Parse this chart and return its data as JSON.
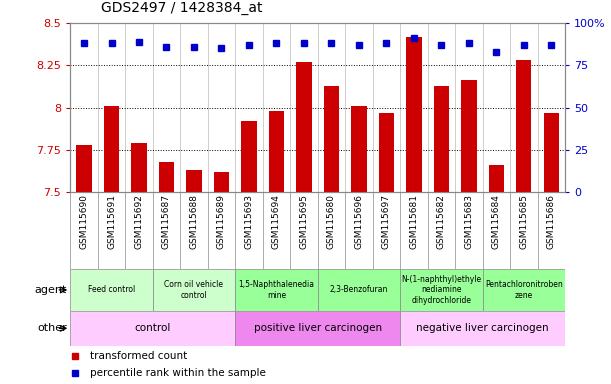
{
  "title": "GDS2497 / 1428384_at",
  "samples": [
    "GSM115690",
    "GSM115691",
    "GSM115692",
    "GSM115687",
    "GSM115688",
    "GSM115689",
    "GSM115693",
    "GSM115694",
    "GSM115695",
    "GSM115680",
    "GSM115696",
    "GSM115697",
    "GSM115681",
    "GSM115682",
    "GSM115683",
    "GSM115684",
    "GSM115685",
    "GSM115686"
  ],
  "transformed_count": [
    7.78,
    8.01,
    7.79,
    7.68,
    7.63,
    7.62,
    7.92,
    7.98,
    8.27,
    8.13,
    8.01,
    7.97,
    8.42,
    8.13,
    8.16,
    7.66,
    8.28,
    7.97
  ],
  "percentile_rank": [
    88,
    88,
    89,
    86,
    86,
    85,
    87,
    88,
    88,
    88,
    87,
    88,
    91,
    87,
    88,
    83,
    87,
    87
  ],
  "ylim_left": [
    7.5,
    8.5
  ],
  "ylim_right": [
    0,
    100
  ],
  "yticks_left": [
    7.5,
    7.75,
    8.0,
    8.25,
    8.5
  ],
  "yticks_right": [
    0,
    25,
    50,
    75,
    100
  ],
  "ytick_labels_left": [
    "7.5",
    "7.75",
    "8",
    "8.25",
    "8.5"
  ],
  "ytick_labels_right": [
    "0",
    "25",
    "50",
    "75",
    "100%"
  ],
  "bar_color": "#cc0000",
  "dot_color": "#0000cc",
  "grid_dotted_ticks": [
    7.75,
    8.0,
    8.25
  ],
  "agent_groups": [
    {
      "label": "Feed control",
      "start": 0,
      "end": 3,
      "color": "#ccffcc"
    },
    {
      "label": "Corn oil vehicle\ncontrol",
      "start": 3,
      "end": 6,
      "color": "#ccffcc"
    },
    {
      "label": "1,5-Naphthalenedia\nmine",
      "start": 6,
      "end": 9,
      "color": "#99ff99"
    },
    {
      "label": "2,3-Benzofuran",
      "start": 9,
      "end": 12,
      "color": "#99ff99"
    },
    {
      "label": "N-(1-naphthyl)ethyle\nnediamine\ndihydrochloride",
      "start": 12,
      "end": 15,
      "color": "#99ff99"
    },
    {
      "label": "Pentachloronitroben\nzene",
      "start": 15,
      "end": 18,
      "color": "#99ff99"
    }
  ],
  "other_groups": [
    {
      "label": "control",
      "start": 0,
      "end": 6,
      "color": "#ffccff"
    },
    {
      "label": "positive liver carcinogen",
      "start": 6,
      "end": 12,
      "color": "#ee88ee"
    },
    {
      "label": "negative liver carcinogen",
      "start": 12,
      "end": 18,
      "color": "#ffccff"
    }
  ],
  "agent_label": "agent",
  "other_label": "other",
  "legend_bar_label": "transformed count",
  "legend_dot_label": "percentile rank within the sample",
  "grid_color": "#555555",
  "axis_color_left": "#cc0000",
  "axis_color_right": "#0000cc",
  "background_color": "#ffffff",
  "plot_bg_color": "#ffffff",
  "xtick_bg_color": "#dddddd",
  "left_label_color": "#555555"
}
